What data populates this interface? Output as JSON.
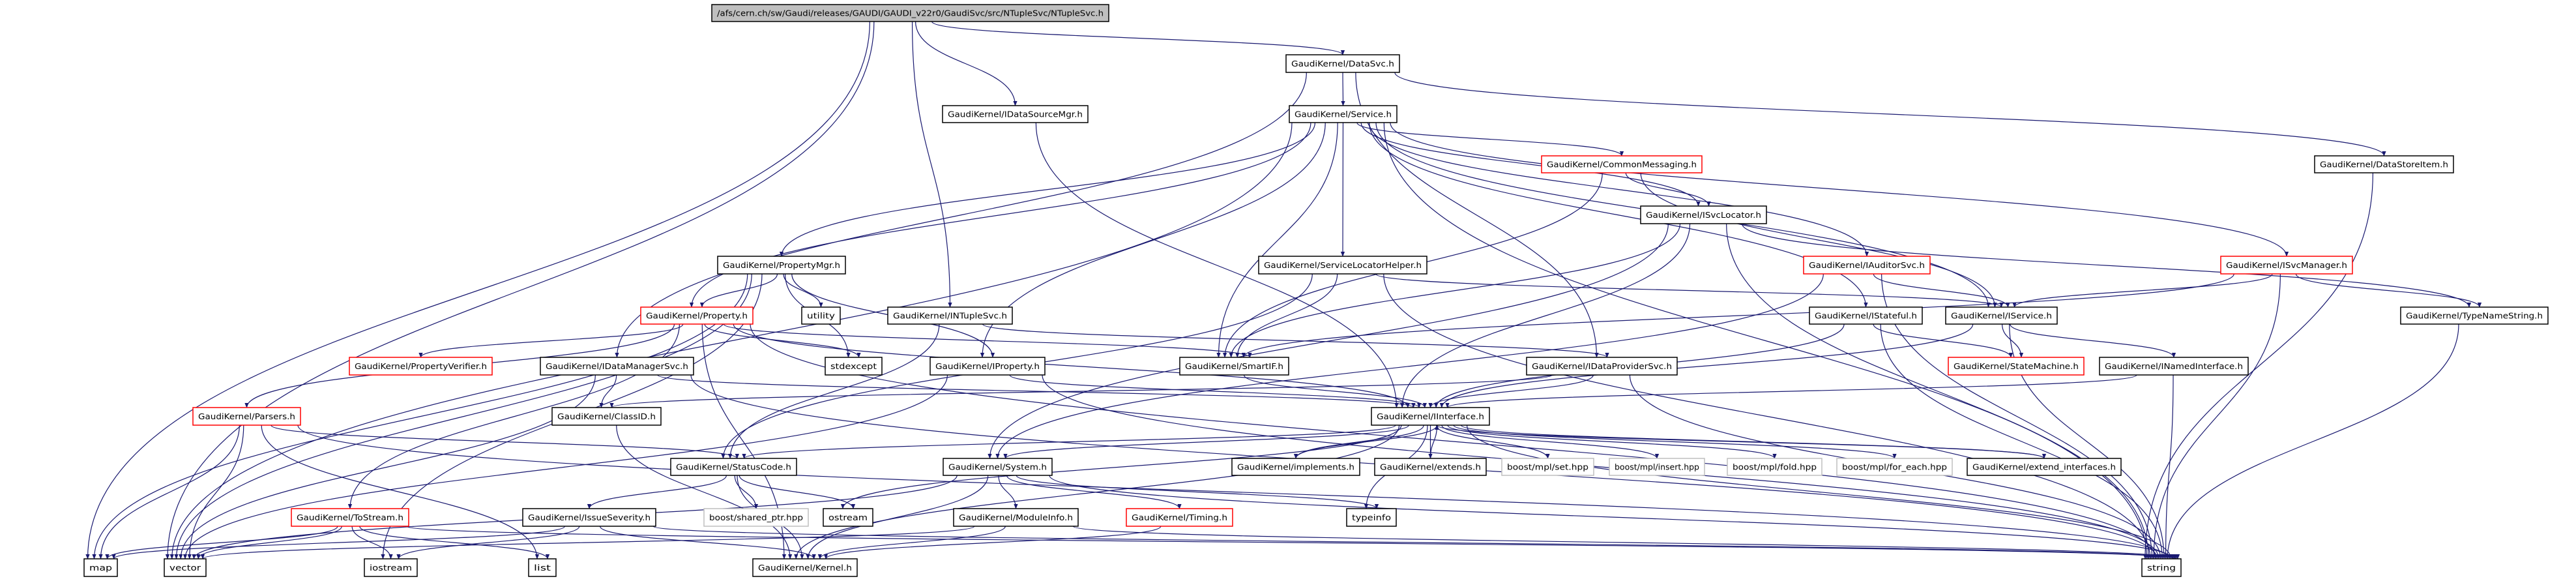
{
  "colors": {
    "edge": "#191970",
    "node_border": "#000000",
    "truncated_border": "#ff0000",
    "external_border": "#bfbfbf",
    "root_fill": "#bfbfbf"
  },
  "nodes": [
    {
      "id": "root",
      "label": "/afs/cern.ch/sw/Gaudi/releases/GAUDI/GAUDI_v22r0/GaudiSvc/src/NTupleSvc/NTupleSvc.h",
      "style": "root"
    },
    {
      "id": "DataSvc",
      "label": "GaudiKernel/DataSvc.h",
      "style": "normal"
    },
    {
      "id": "IDataSourceMgr",
      "label": "GaudiKernel/IDataSourceMgr.h",
      "style": "normal"
    },
    {
      "id": "Service",
      "label": "GaudiKernel/Service.h",
      "style": "normal"
    },
    {
      "id": "CommonMessaging",
      "label": "GaudiKernel/CommonMessaging.h",
      "style": "red"
    },
    {
      "id": "DataStoreItem",
      "label": "GaudiKernel/DataStoreItem.h",
      "style": "normal"
    },
    {
      "id": "ISvcLocator",
      "label": "GaudiKernel/ISvcLocator.h",
      "style": "normal"
    },
    {
      "id": "PropertyMgr",
      "label": "GaudiKernel/PropertyMgr.h",
      "style": "normal"
    },
    {
      "id": "ServiceLocatorHelper",
      "label": "GaudiKernel/ServiceLocatorHelper.h",
      "style": "normal"
    },
    {
      "id": "IAuditorSvc",
      "label": "GaudiKernel/IAuditorSvc.h",
      "style": "red"
    },
    {
      "id": "ISvcManager",
      "label": "GaudiKernel/ISvcManager.h",
      "style": "red"
    },
    {
      "id": "Property",
      "label": "GaudiKernel/Property.h",
      "style": "red"
    },
    {
      "id": "utility",
      "label": "utility",
      "style": "normal"
    },
    {
      "id": "INTupleSvc",
      "label": "GaudiKernel/INTupleSvc.h",
      "style": "normal"
    },
    {
      "id": "IStateful",
      "label": "GaudiKernel/IStateful.h",
      "style": "normal"
    },
    {
      "id": "IService",
      "label": "GaudiKernel/IService.h",
      "style": "normal"
    },
    {
      "id": "TypeNameString",
      "label": "GaudiKernel/TypeNameString.h",
      "style": "normal"
    },
    {
      "id": "PropertyVerifier",
      "label": "GaudiKernel/PropertyVerifier.h",
      "style": "red"
    },
    {
      "id": "IDataManagerSvc",
      "label": "GaudiKernel/IDataManagerSvc.h",
      "style": "normal"
    },
    {
      "id": "stdexcept",
      "label": "stdexcept",
      "style": "normal"
    },
    {
      "id": "IProperty",
      "label": "GaudiKernel/IProperty.h",
      "style": "normal"
    },
    {
      "id": "SmartIF",
      "label": "GaudiKernel/SmartIF.h",
      "style": "normal"
    },
    {
      "id": "IDataProviderSvc",
      "label": "GaudiKernel/IDataProviderSvc.h",
      "style": "normal"
    },
    {
      "id": "StateMachine",
      "label": "GaudiKernel/StateMachine.h",
      "style": "red"
    },
    {
      "id": "INamedInterface",
      "label": "GaudiKernel/INamedInterface.h",
      "style": "normal"
    },
    {
      "id": "Parsers",
      "label": "GaudiKernel/Parsers.h",
      "style": "red"
    },
    {
      "id": "ClassID",
      "label": "GaudiKernel/ClassID.h",
      "style": "normal"
    },
    {
      "id": "IInterface",
      "label": "GaudiKernel/IInterface.h",
      "style": "normal"
    },
    {
      "id": "StatusCode",
      "label": "GaudiKernel/StatusCode.h",
      "style": "normal"
    },
    {
      "id": "System",
      "label": "GaudiKernel/System.h",
      "style": "normal"
    },
    {
      "id": "implements",
      "label": "GaudiKernel/implements.h",
      "style": "normal"
    },
    {
      "id": "extends",
      "label": "GaudiKernel/extends.h",
      "style": "normal"
    },
    {
      "id": "mplset",
      "label": "boost/mpl/set.hpp",
      "style": "gray"
    },
    {
      "id": "mplinsert",
      "label": "boost/mpl/insert.hpp",
      "style": "gray"
    },
    {
      "id": "mplfold",
      "label": "boost/mpl/fold.hpp",
      "style": "gray"
    },
    {
      "id": "mplforeach",
      "label": "boost/mpl/for_each.hpp",
      "style": "gray"
    },
    {
      "id": "extend_interfaces",
      "label": "GaudiKernel/extend_interfaces.h",
      "style": "normal"
    },
    {
      "id": "ToStream",
      "label": "GaudiKernel/ToStream.h",
      "style": "red"
    },
    {
      "id": "IssueSeverity",
      "label": "GaudiKernel/IssueSeverity.h",
      "style": "normal"
    },
    {
      "id": "shared_ptr",
      "label": "boost/shared_ptr.hpp",
      "style": "gray"
    },
    {
      "id": "ostream",
      "label": "ostream",
      "style": "normal"
    },
    {
      "id": "ModuleInfo",
      "label": "GaudiKernel/ModuleInfo.h",
      "style": "normal"
    },
    {
      "id": "Timing",
      "label": "GaudiKernel/Timing.h",
      "style": "red"
    },
    {
      "id": "typeinfo",
      "label": "typeinfo",
      "style": "normal"
    },
    {
      "id": "map",
      "label": "map",
      "style": "normal"
    },
    {
      "id": "vector",
      "label": "vector",
      "style": "normal"
    },
    {
      "id": "iostream",
      "label": "iostream",
      "style": "normal"
    },
    {
      "id": "list",
      "label": "list",
      "style": "normal"
    },
    {
      "id": "Kernel",
      "label": "GaudiKernel/Kernel.h",
      "style": "normal"
    },
    {
      "id": "string",
      "label": "string",
      "style": "normal"
    }
  ],
  "edges": [
    [
      "root",
      "DataSvc"
    ],
    [
      "root",
      "IDataSourceMgr"
    ],
    [
      "root",
      "INTupleSvc"
    ],
    [
      "root",
      "map"
    ],
    [
      "root",
      "vector"
    ],
    [
      "DataSvc",
      "Service"
    ],
    [
      "DataSvc",
      "IDataManagerSvc"
    ],
    [
      "DataSvc",
      "DataStoreItem"
    ],
    [
      "DataSvc",
      "IDataProviderSvc"
    ],
    [
      "IDataSourceMgr",
      "IInterface"
    ],
    [
      "DataStoreItem",
      "string"
    ],
    [
      "Service",
      "CommonMessaging"
    ],
    [
      "Service",
      "ServiceLocatorHelper"
    ],
    [
      "Service",
      "ISvcLocator"
    ],
    [
      "Service",
      "IService"
    ],
    [
      "Service",
      "IStateful"
    ],
    [
      "Service",
      "IAuditorSvc"
    ],
    [
      "Service",
      "ISvcManager"
    ],
    [
      "Service",
      "Property"
    ],
    [
      "Service",
      "PropertyMgr"
    ],
    [
      "Service",
      "IProperty"
    ],
    [
      "Service",
      "SmartIF"
    ],
    [
      "Service",
      "vector"
    ],
    [
      "Service",
      "string"
    ],
    [
      "CommonMessaging",
      "ISvcLocator"
    ],
    [
      "CommonMessaging",
      "IService"
    ],
    [
      "CommonMessaging",
      "SmartIF"
    ],
    [
      "ISvcLocator",
      "IInterface"
    ],
    [
      "ISvcLocator",
      "SmartIF"
    ],
    [
      "ISvcLocator",
      "TypeNameString"
    ],
    [
      "ISvcLocator",
      "string"
    ],
    [
      "ISvcLocator",
      "System"
    ],
    [
      "ServiceLocatorHelper",
      "SmartIF"
    ],
    [
      "ServiceLocatorHelper",
      "StatusCode"
    ],
    [
      "ServiceLocatorHelper",
      "IService"
    ],
    [
      "ServiceLocatorHelper",
      "string"
    ],
    [
      "IAuditorSvc",
      "IService"
    ],
    [
      "IAuditorSvc",
      "System"
    ],
    [
      "IAuditorSvc",
      "string"
    ],
    [
      "ISvcManager",
      "IService"
    ],
    [
      "ISvcManager",
      "SmartIF"
    ],
    [
      "ISvcManager",
      "TypeNameString"
    ],
    [
      "ISvcManager",
      "string"
    ],
    [
      "PropertyMgr",
      "Property"
    ],
    [
      "PropertyMgr",
      "utility"
    ],
    [
      "PropertyMgr",
      "stdexcept"
    ],
    [
      "PropertyMgr",
      "IProperty"
    ],
    [
      "PropertyMgr",
      "vector"
    ],
    [
      "PropertyMgr",
      "map"
    ],
    [
      "PropertyMgr",
      "iostream"
    ],
    [
      "Property",
      "PropertyVerifier"
    ],
    [
      "Property",
      "Parsers"
    ],
    [
      "Property",
      "ToStream"
    ],
    [
      "Property",
      "stdexcept"
    ],
    [
      "Property",
      "SmartIF"
    ],
    [
      "Property",
      "Kernel"
    ],
    [
      "Property",
      "string"
    ],
    [
      "Property",
      "IInterface"
    ],
    [
      "INTupleSvc",
      "IDataProviderSvc"
    ],
    [
      "INTupleSvc",
      "StatusCode"
    ],
    [
      "IDataManagerSvc",
      "ClassID"
    ],
    [
      "IDataManagerSvc",
      "IInterface"
    ],
    [
      "IDataManagerSvc",
      "vector"
    ],
    [
      "IDataManagerSvc",
      "string"
    ],
    [
      "IProperty",
      "IInterface"
    ],
    [
      "IProperty",
      "vector"
    ],
    [
      "IProperty",
      "string"
    ],
    [
      "SmartIF",
      "IInterface"
    ],
    [
      "IDataProviderSvc",
      "IInterface"
    ],
    [
      "IDataProviderSvc",
      "ClassID"
    ],
    [
      "IDataProviderSvc",
      "string"
    ],
    [
      "IStateful",
      "IInterface"
    ],
    [
      "IStateful",
      "StateMachine"
    ],
    [
      "IStateful",
      "string"
    ],
    [
      "IService",
      "IInterface"
    ],
    [
      "IService",
      "StateMachine"
    ],
    [
      "IService",
      "INamedInterface"
    ],
    [
      "IService",
      "string"
    ],
    [
      "INamedInterface",
      "IInterface"
    ],
    [
      "INamedInterface",
      "string"
    ],
    [
      "TypeNameString",
      "string"
    ],
    [
      "Parsers",
      "StatusCode"
    ],
    [
      "Parsers",
      "map"
    ],
    [
      "Parsers",
      "vector"
    ],
    [
      "Parsers",
      "string"
    ],
    [
      "Parsers",
      "list"
    ],
    [
      "ClassID",
      "Kernel"
    ],
    [
      "IInterface",
      "System"
    ],
    [
      "IInterface",
      "implements"
    ],
    [
      "IInterface",
      "extends"
    ],
    [
      "IInterface",
      "mplset"
    ],
    [
      "IInterface",
      "mplinsert"
    ],
    [
      "IInterface",
      "mplfold"
    ],
    [
      "IInterface",
      "mplforeach"
    ],
    [
      "IInterface",
      "extend_interfaces"
    ],
    [
      "IInterface",
      "StatusCode"
    ],
    [
      "IInterface",
      "typeinfo"
    ],
    [
      "IInterface",
      "ostream"
    ],
    [
      "IInterface",
      "Kernel"
    ],
    [
      "IInterface",
      "string"
    ],
    [
      "implements",
      "IInterface"
    ],
    [
      "extends",
      "IInterface"
    ],
    [
      "extend_interfaces",
      "IInterface"
    ],
    [
      "StatusCode",
      "IssueSeverity"
    ],
    [
      "StatusCode",
      "shared_ptr"
    ],
    [
      "StatusCode",
      "ostream"
    ],
    [
      "StatusCode",
      "Kernel"
    ],
    [
      "System",
      "ModuleInfo"
    ],
    [
      "System",
      "Timing"
    ],
    [
      "System",
      "typeinfo"
    ],
    [
      "System",
      "string"
    ],
    [
      "System",
      "vector"
    ],
    [
      "System",
      "Kernel"
    ],
    [
      "ToStream",
      "map"
    ],
    [
      "ToStream",
      "vector"
    ],
    [
      "ToStream",
      "list"
    ],
    [
      "ToStream",
      "iostream"
    ],
    [
      "ToStream",
      "string"
    ],
    [
      "IssueSeverity",
      "map"
    ],
    [
      "IssueSeverity",
      "iostream"
    ],
    [
      "IssueSeverity",
      "Kernel"
    ],
    [
      "IssueSeverity",
      "string"
    ],
    [
      "ModuleInfo",
      "Kernel"
    ],
    [
      "ModuleInfo",
      "string"
    ],
    [
      "ModuleInfo",
      "vector"
    ],
    [
      "Timing",
      "Kernel"
    ]
  ]
}
